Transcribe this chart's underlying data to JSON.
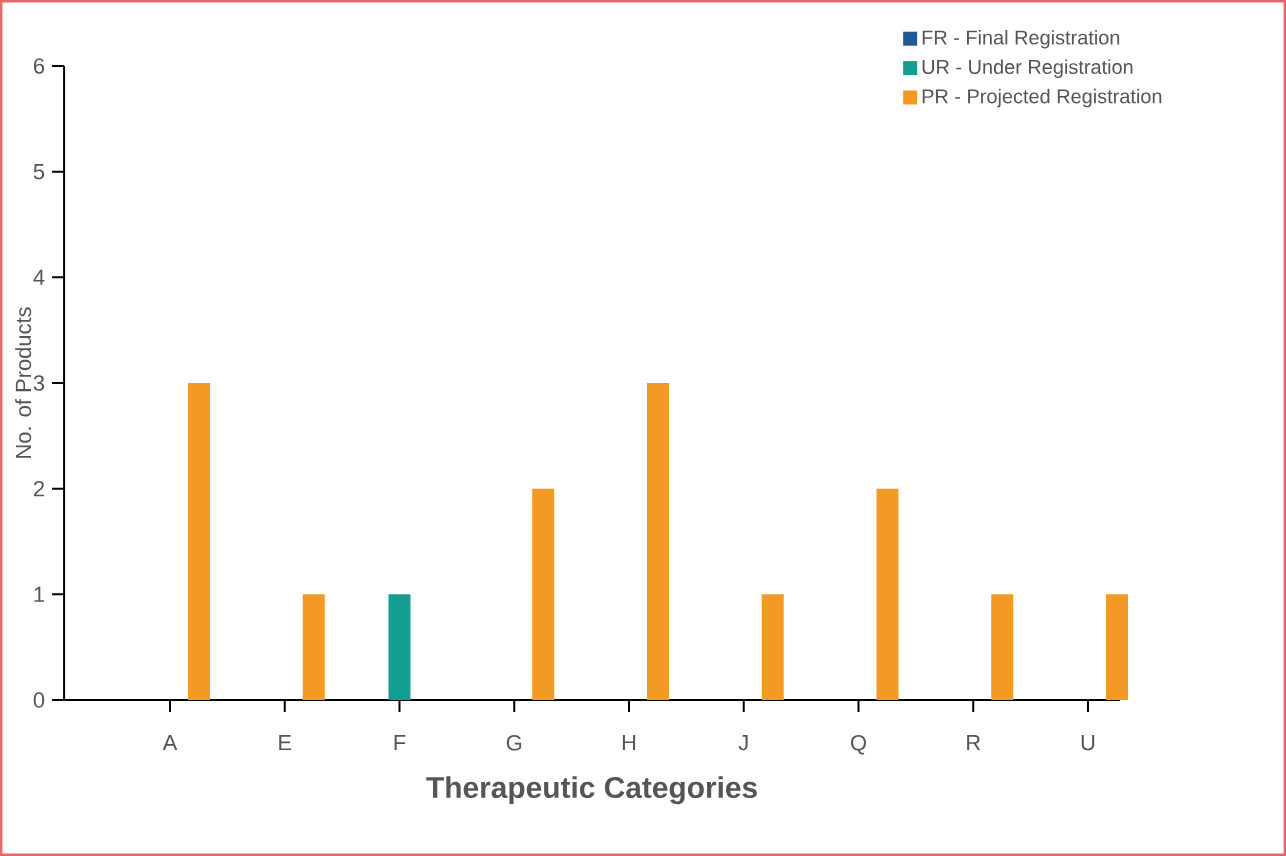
{
  "chart_data": {
    "type": "bar",
    "xlabel": "Therapeutic Categories",
    "ylabel": "No. of Products",
    "categories": [
      "A",
      "E",
      "F",
      "G",
      "H",
      "J",
      "Q",
      "R",
      "U"
    ],
    "series": [
      {
        "name": "FR - Final Registration",
        "color": "#1f5a96",
        "values": [
          0,
          0,
          0,
          0,
          0,
          0,
          0,
          0,
          0
        ]
      },
      {
        "name": "UR - Under Registration",
        "color": "#139e8f",
        "values": [
          0,
          0,
          1,
          0,
          0,
          0,
          0,
          0,
          0
        ]
      },
      {
        "name": "PR - Projected Registration",
        "color": "#f39a25",
        "values": [
          3,
          1,
          0,
          2,
          3,
          1,
          2,
          1,
          1
        ]
      }
    ],
    "ylim": [
      0,
      6
    ],
    "yticks": [
      0,
      1,
      2,
      3,
      4,
      5,
      6
    ],
    "legend": "top right"
  }
}
